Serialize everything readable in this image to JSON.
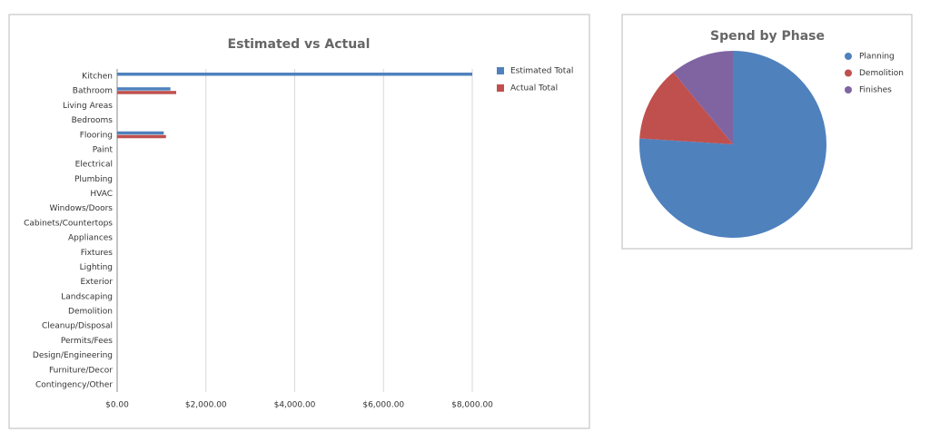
{
  "chart_data": [
    {
      "type": "bar",
      "orientation": "horizontal",
      "title": "Estimated vs Actual",
      "categories": [
        "Kitchen",
        "Bathroom",
        "Living Areas",
        "Bedrooms",
        "Flooring",
        "Paint",
        "Electrical",
        "Plumbing",
        "HVAC",
        "Windows/Doors",
        "Cabinets/Countertops",
        "Appliances",
        "Fixtures",
        "Lighting",
        "Exterior",
        "Landscaping",
        "Demolition",
        "Cleanup/Disposal",
        "Permits/Fees",
        "Design/Engineering",
        "Furniture/Decor",
        "Contingency/Other"
      ],
      "series": [
        {
          "name": "Estimated Total",
          "color": "#4f81bd",
          "values": [
            8000,
            1200,
            0,
            0,
            1050,
            0,
            0,
            0,
            0,
            0,
            0,
            0,
            0,
            0,
            0,
            0,
            0,
            0,
            0,
            0,
            0,
            0
          ]
        },
        {
          "name": "Actual Total",
          "color": "#c0504d",
          "values": [
            0,
            1330,
            0,
            0,
            1100,
            0,
            0,
            0,
            0,
            0,
            0,
            0,
            0,
            0,
            0,
            0,
            0,
            0,
            0,
            0,
            0,
            0
          ]
        }
      ],
      "xlim": [
        0,
        8000
      ],
      "xticks": [
        {
          "value": 0,
          "label": "$0.00"
        },
        {
          "value": 2000,
          "label": "$2,000.00"
        },
        {
          "value": 4000,
          "label": "$4,000.00"
        },
        {
          "value": 6000,
          "label": "$6,000.00"
        },
        {
          "value": 8000,
          "label": "$8,000.00"
        }
      ],
      "grid": true,
      "legend": "right"
    },
    {
      "type": "pie",
      "title": "Spend by Phase",
      "categories": [
        "Planning",
        "Demolition",
        "Finishes"
      ],
      "values": [
        76,
        13,
        11
      ],
      "colors": [
        "#4f81bd",
        "#c0504d",
        "#8064a2"
      ],
      "legend": "right"
    }
  ]
}
